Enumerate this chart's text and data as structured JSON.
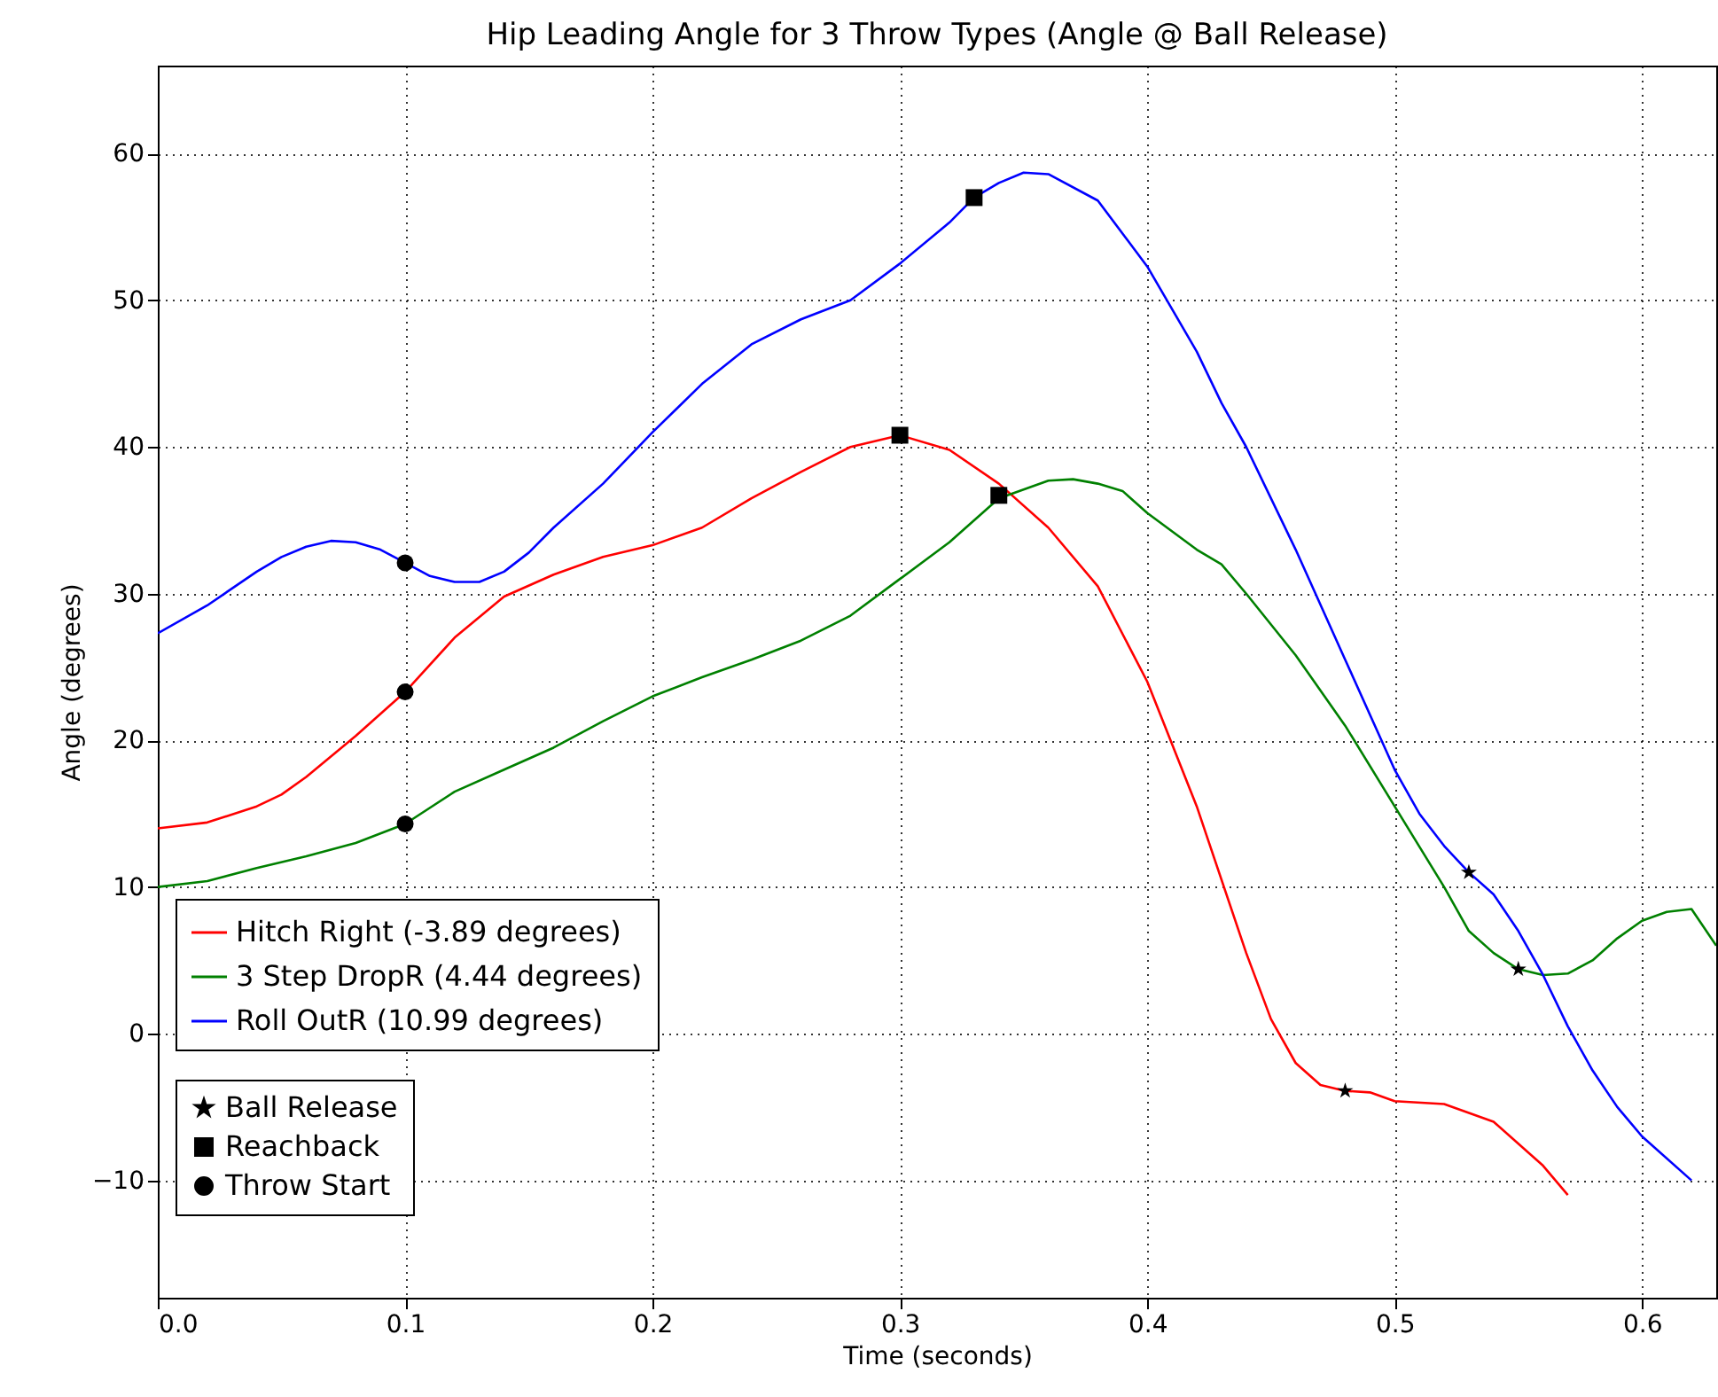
{
  "chart_data": {
    "type": "line",
    "title": "Hip Leading Angle for 3 Throw Types (Angle @ Ball Release)",
    "xlabel": "Time (seconds)",
    "ylabel": "Angle (degrees)",
    "xlim": [
      0,
      0.63
    ],
    "ylim": [
      -18,
      66
    ],
    "xticks": [
      {
        "value": 0,
        "label": "0.0"
      },
      {
        "value": 0.1,
        "label": "0.1"
      },
      {
        "value": 0.2,
        "label": "0.2"
      },
      {
        "value": 0.3,
        "label": "0.3"
      },
      {
        "value": 0.4,
        "label": "0.4"
      },
      {
        "value": 0.5,
        "label": "0.5"
      },
      {
        "value": 0.6,
        "label": "0.6"
      }
    ],
    "yticks": [
      -10,
      0,
      10,
      20,
      30,
      40,
      50,
      60
    ],
    "grid": true,
    "legend": "bottom left",
    "series": [
      {
        "name": "Hitch Right (-3.89 degrees)",
        "color": "#ff0000",
        "x": [
          0,
          0.02,
          0.04,
          0.05,
          0.06,
          0.08,
          0.1,
          0.12,
          0.14,
          0.16,
          0.18,
          0.2,
          0.22,
          0.24,
          0.26,
          0.28,
          0.3,
          0.32,
          0.34,
          0.36,
          0.38,
          0.4,
          0.42,
          0.44,
          0.45,
          0.46,
          0.47,
          0.48,
          0.49,
          0.5,
          0.52,
          0.54,
          0.56,
          0.57
        ],
        "values": [
          14,
          14.4,
          15.5,
          16.3,
          17.5,
          20.3,
          23.3,
          27,
          29.8,
          31.3,
          32.5,
          33.3,
          34.5,
          36.5,
          38.3,
          40,
          40.8,
          39.8,
          37.5,
          34.5,
          30.5,
          24,
          15.5,
          5.5,
          1,
          -2,
          -3.5,
          -3.9,
          -4,
          -4.6,
          -4.8,
          -6,
          -9,
          -11
        ]
      },
      {
        "name": "3 Step DropR (4.44 degrees)",
        "color": "#008000",
        "x": [
          0,
          0.02,
          0.04,
          0.06,
          0.08,
          0.1,
          0.12,
          0.14,
          0.16,
          0.18,
          0.2,
          0.22,
          0.24,
          0.26,
          0.28,
          0.3,
          0.32,
          0.34,
          0.36,
          0.37,
          0.38,
          0.39,
          0.4,
          0.42,
          0.43,
          0.44,
          0.46,
          0.48,
          0.5,
          0.52,
          0.53,
          0.54,
          0.55,
          0.56,
          0.57,
          0.58,
          0.59,
          0.6,
          0.61,
          0.62,
          0.63
        ],
        "values": [
          10,
          10.4,
          11.3,
          12.1,
          13,
          14.3,
          16.5,
          18,
          19.5,
          21.3,
          23,
          24.3,
          25.5,
          26.8,
          28.5,
          31,
          33.5,
          36.5,
          37.7,
          37.8,
          37.5,
          37,
          35.5,
          33,
          32,
          30,
          25.8,
          21,
          15.5,
          10,
          7,
          5.5,
          4.4,
          4,
          4.1,
          5,
          6.5,
          7.7,
          8.3,
          8.5,
          6
        ]
      },
      {
        "name": "Roll OutR (10.99 degrees)",
        "color": "#0000ff",
        "x": [
          0,
          0.02,
          0.04,
          0.05,
          0.06,
          0.07,
          0.08,
          0.09,
          0.1,
          0.11,
          0.12,
          0.13,
          0.14,
          0.15,
          0.16,
          0.18,
          0.2,
          0.22,
          0.24,
          0.26,
          0.28,
          0.3,
          0.32,
          0.33,
          0.34,
          0.35,
          0.36,
          0.38,
          0.4,
          0.42,
          0.43,
          0.44,
          0.46,
          0.48,
          0.5,
          0.51,
          0.52,
          0.53,
          0.54,
          0.55,
          0.56,
          0.57,
          0.58,
          0.59,
          0.6,
          0.62
        ],
        "values": [
          27.3,
          29.2,
          31.5,
          32.5,
          33.2,
          33.6,
          33.5,
          33,
          32.1,
          31.2,
          30.8,
          30.8,
          31.5,
          32.8,
          34.5,
          37.5,
          41,
          44.3,
          47,
          48.7,
          50,
          52.5,
          55.3,
          57,
          58,
          58.7,
          58.6,
          56.8,
          52.3,
          46.5,
          43,
          40,
          33,
          25.5,
          18,
          15,
          12.8,
          11,
          9.5,
          7,
          4,
          0.5,
          -2.5,
          -5,
          -7,
          -10
        ]
      },
      {
        "name": "Ball Release",
        "type": "scatter",
        "marker": "star",
        "color": "#000000",
        "x": [
          0.48,
          0.55,
          0.53
        ],
        "values": [
          -3.9,
          4.4,
          11
        ]
      },
      {
        "name": "Reachback",
        "type": "scatter",
        "marker": "square",
        "color": "#000000",
        "x": [
          0.3,
          0.34,
          0.33
        ],
        "values": [
          40.8,
          36.7,
          57
        ]
      },
      {
        "name": "Throw Start",
        "type": "scatter",
        "marker": "circle",
        "color": "#000000",
        "x": [
          0.1,
          0.1,
          0.1
        ],
        "values": [
          23.3,
          14.3,
          32.1
        ]
      }
    ]
  }
}
